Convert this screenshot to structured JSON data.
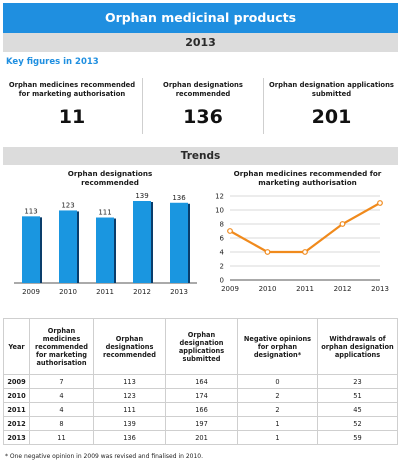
{
  "title": "Orphan medicinal products",
  "year": "2013",
  "key_figures": {
    "heading": "Key figures in 2013",
    "items": [
      {
        "label": "Orphan medicines recommended for marketing authorisation",
        "value": "11"
      },
      {
        "label": "Orphan designations recommended",
        "value": "136"
      },
      {
        "label": "Orphan designation applications submitted",
        "value": "201"
      }
    ]
  },
  "trends_heading": "Trends",
  "chart_data": [
    {
      "type": "bar",
      "title": "Orphan designations recommended",
      "categories": [
        "2009",
        "2010",
        "2011",
        "2012",
        "2013"
      ],
      "values": [
        113,
        123,
        111,
        139,
        136
      ],
      "xlabel": "",
      "ylabel": "",
      "data_labels": true,
      "grid": false,
      "color": "#1a96e0"
    },
    {
      "type": "line",
      "title": "Orphan medicines recommended for marketing authorisation",
      "categories": [
        "2009",
        "2010",
        "2011",
        "2012",
        "2013"
      ],
      "values": [
        7,
        4,
        4,
        8,
        11
      ],
      "xlabel": "",
      "ylabel": "",
      "ylim": [
        0,
        12
      ],
      "yticks": [
        0,
        2,
        4,
        6,
        8,
        10,
        12
      ],
      "grid": true,
      "color": "#f08a1c"
    }
  ],
  "table": {
    "headers": [
      "Year",
      "Orphan medicines recommended for marketing authorisation",
      "Orphan designations recommended",
      "Orphan designation applications submitted",
      "Negative opinions for orphan designation*",
      "Withdrawals of orphan designation applications"
    ],
    "rows": [
      [
        "2009",
        "7",
        "113",
        "164",
        "0",
        "23"
      ],
      [
        "2010",
        "4",
        "123",
        "174",
        "2",
        "51"
      ],
      [
        "2011",
        "4",
        "111",
        "166",
        "2",
        "45"
      ],
      [
        "2012",
        "8",
        "139",
        "197",
        "1",
        "52"
      ],
      [
        "2013",
        "11",
        "136",
        "201",
        "1",
        "59"
      ]
    ]
  },
  "footnote": "* One negative opinion in 2009 was revised and finalised in 2010."
}
